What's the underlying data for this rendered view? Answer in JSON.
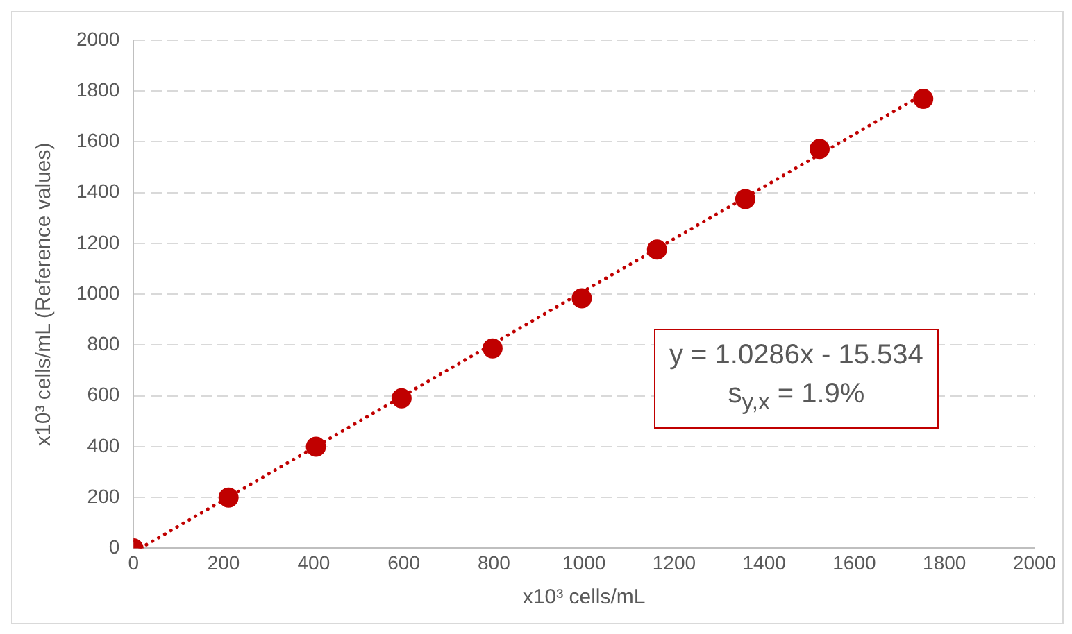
{
  "chart_data": {
    "type": "scatter",
    "xlabel": "x10³ cells/mL",
    "ylabel": "x10³ cells/mL (Reference values)",
    "xlim": [
      0,
      2000
    ],
    "xticks": [
      0,
      200,
      400,
      600,
      800,
      1000,
      1200,
      1400,
      1600,
      1800,
      2000
    ],
    "ylim": [
      0,
      2000
    ],
    "yticks": [
      0,
      200,
      400,
      600,
      800,
      1000,
      1200,
      1400,
      1600,
      1800,
      2000
    ],
    "grid": "y",
    "legend": false,
    "marker": "circle",
    "series": [
      {
        "type": "scatter",
        "color": "#c00000",
        "x": [
          0,
          211,
          405,
          595,
          797,
          995,
          1162,
          1358,
          1523,
          1753
        ],
        "values": [
          0,
          200,
          400,
          590,
          787,
          984,
          1176,
          1375,
          1572,
          1769
        ]
      },
      {
        "type": "line",
        "color": "#c00000",
        "line_style": "dotted",
        "marker": "none",
        "x": [
          15,
          1753
        ],
        "values": [
          0,
          1787
        ]
      }
    ],
    "annotations": [
      "y = 1.0286x - 15.534",
      "s$_{y,x}$ = 1.9%"
    ]
  }
}
